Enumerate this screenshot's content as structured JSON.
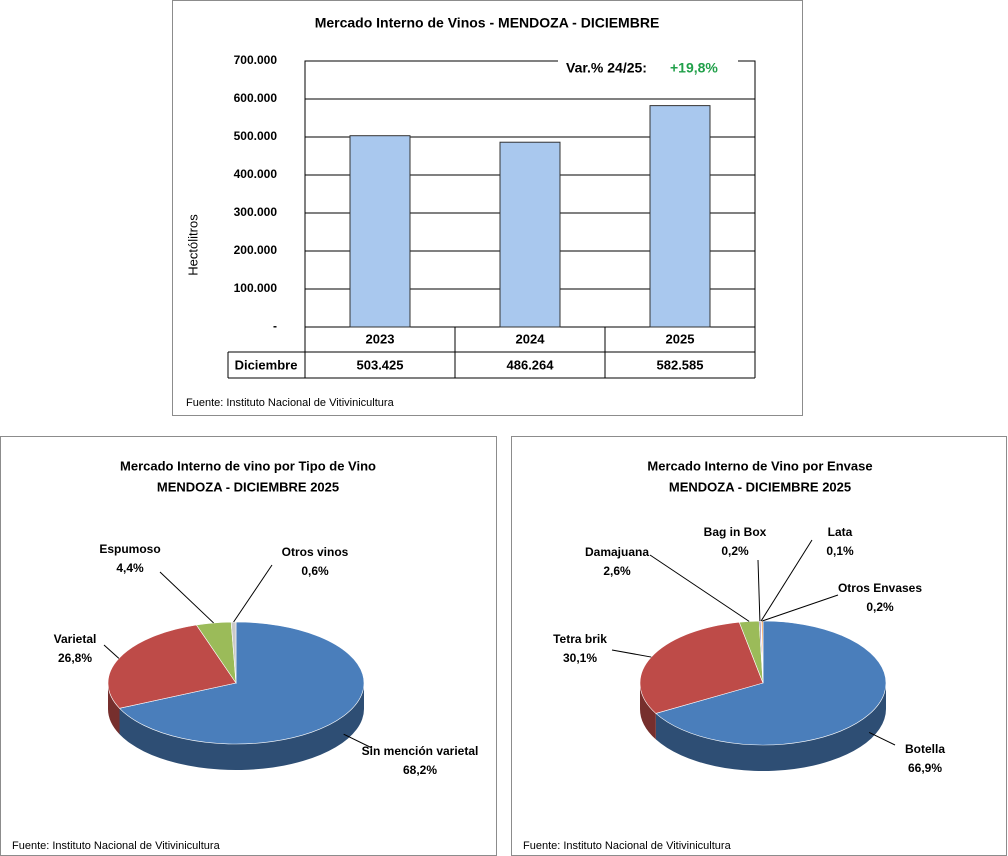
{
  "chart_data": [
    {
      "type": "bar",
      "title": "Mercado Interno de Vinos - MENDOZA  - DICIEMBRE",
      "ylabel": "Hectólitros",
      "categories": [
        "2023",
        "2024",
        "2025"
      ],
      "row_label": "Diciembre",
      "values": [
        503425,
        486264,
        582585
      ],
      "value_labels": [
        "503.425",
        "486.264",
        "582.585"
      ],
      "color": "#a9c8ee",
      "ylim": [
        0,
        700000
      ],
      "yticks": [
        {
          "value": 0,
          "label": "-"
        },
        {
          "value": 100000,
          "label": "100.000"
        },
        {
          "value": 200000,
          "label": "200.000"
        },
        {
          "value": 300000,
          "label": "300.000"
        },
        {
          "value": 400000,
          "label": "400.000"
        },
        {
          "value": 500000,
          "label": "500.000"
        },
        {
          "value": 600000,
          "label": "600.000"
        },
        {
          "value": 700000,
          "label": "700.000"
        }
      ],
      "grid": true,
      "annotation": "Var.% 24/25:",
      "annotation_value": "+19,8%",
      "source": "Fuente: Instituto Nacional de Vitivinicultura"
    },
    {
      "type": "pie",
      "title": "Mercado Interno de vino por Tipo de Vino",
      "subtitle": "MENDOZA - DICIEMBRE 2025",
      "categories": [
        "Sin mención varietal",
        "Varietal",
        "Espumoso",
        "Otros vinos"
      ],
      "values": [
        68.2,
        26.8,
        4.4,
        0.6
      ],
      "value_labels": [
        "68,2%",
        "26,8%",
        "4,4%",
        "0,6%"
      ],
      "colors": [
        "#4a7ebb",
        "#be4b48",
        "#9bbb59",
        "#c9c9c9"
      ],
      "source": "Fuente: Instituto Nacional de Vitivinicultura"
    },
    {
      "type": "pie",
      "title": "Mercado Interno de Vino por Envase",
      "subtitle": "MENDOZA - DICIEMBRE 2025",
      "categories": [
        "Botella",
        "Tetra brik",
        "Damajuana",
        "Bag in Box",
        "Lata",
        "Otros Envases"
      ],
      "values": [
        66.9,
        30.1,
        2.6,
        0.2,
        0.1,
        0.2
      ],
      "value_labels": [
        "66,9%",
        "30,1%",
        "2,6%",
        "0,2%",
        "0,1%",
        "0,2%"
      ],
      "colors": [
        "#4a7ebb",
        "#be4b48",
        "#9bbb59",
        "#8064a2",
        "#4bacc6",
        "#f79646"
      ],
      "source": "Fuente: Instituto Nacional de Vitivinicultura"
    }
  ]
}
